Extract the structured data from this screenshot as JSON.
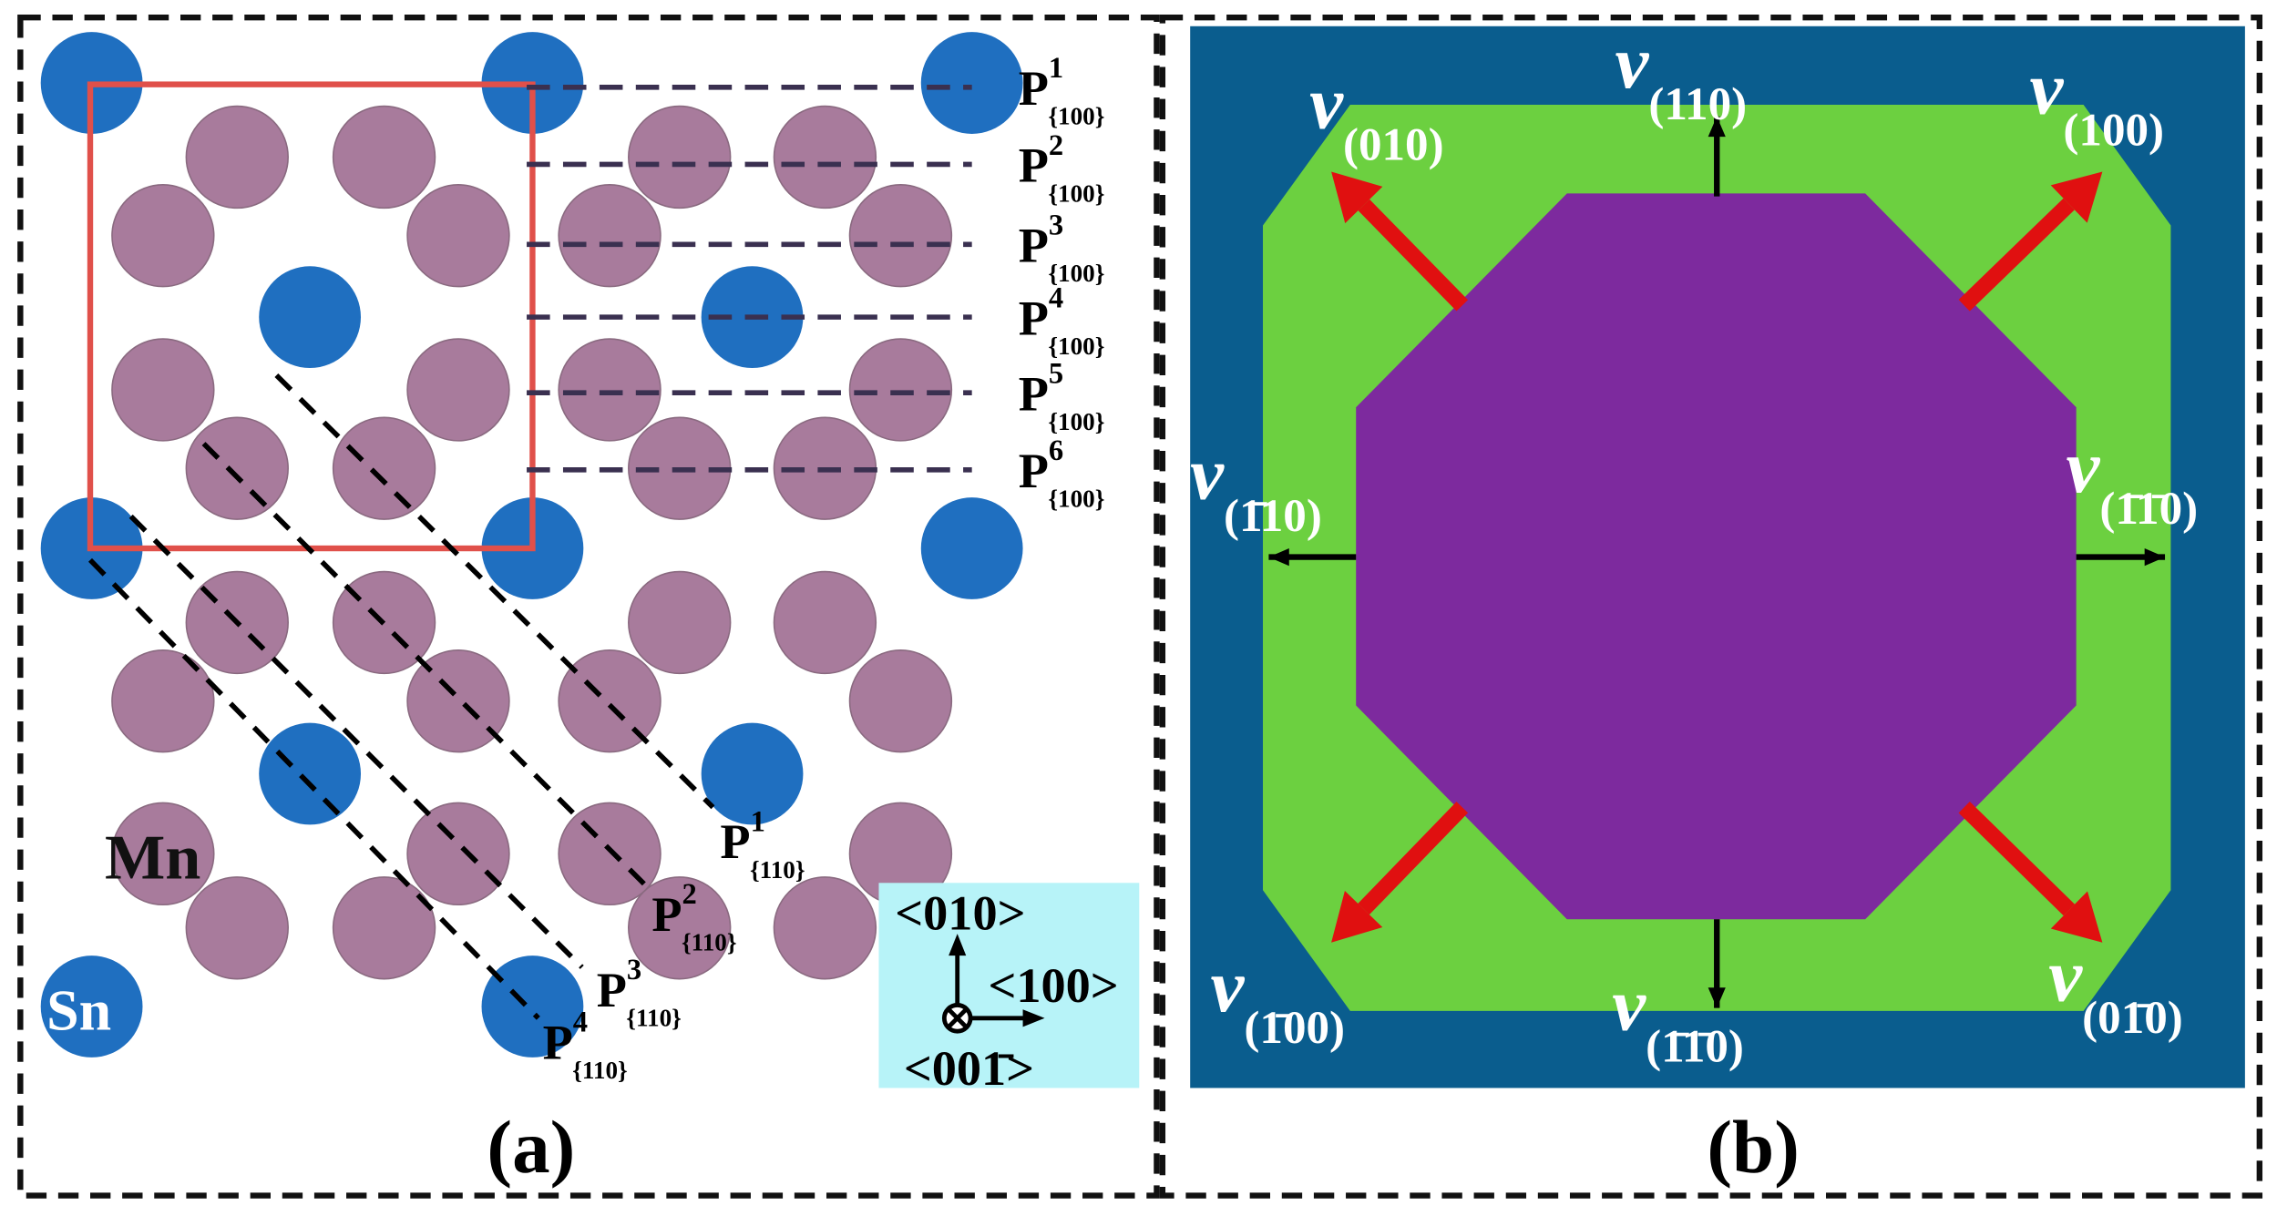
{
  "panel_a": {
    "label": "(a)",
    "planes_100": [
      {
        "main": "P",
        "sup": "1",
        "sub": "{100}"
      },
      {
        "main": "P",
        "sup": "2",
        "sub": "{100}"
      },
      {
        "main": "P",
        "sup": "3",
        "sub": "{100}"
      },
      {
        "main": "P",
        "sup": "4",
        "sub": "{100}"
      },
      {
        "main": "P",
        "sup": "5",
        "sub": "{100}"
      },
      {
        "main": "P",
        "sup": "6",
        "sub": "{100}"
      }
    ],
    "planes_110": [
      {
        "main": "P",
        "sup": "1",
        "sub": "{110}"
      },
      {
        "main": "P",
        "sup": "2",
        "sub": "{110}"
      },
      {
        "main": "P",
        "sup": "3",
        "sub": "{110}"
      },
      {
        "main": "P",
        "sup": "4",
        "sub": "{110}"
      }
    ],
    "atoms": {
      "mn": "Mn",
      "sn": "Sn"
    },
    "axes": {
      "up": "<010>",
      "right": "<100>",
      "out": "<001̄>"
    }
  },
  "panel_b": {
    "label": "(b)",
    "velocities": [
      {
        "symbol": "v",
        "sub": "(110)"
      },
      {
        "symbol": "v",
        "sub": "(010)"
      },
      {
        "symbol": "v",
        "sub": "(100)"
      },
      {
        "symbol": "v",
        "sub": "(1̄10)"
      },
      {
        "symbol": "v",
        "sub": "(1̄1̄0)"
      },
      {
        "symbol": "v",
        "sub": "(1̄00)"
      },
      {
        "symbol": "v",
        "sub": "(1̄1̄0)"
      },
      {
        "symbol": "v",
        "sub": "(01̄0)"
      }
    ]
  }
}
